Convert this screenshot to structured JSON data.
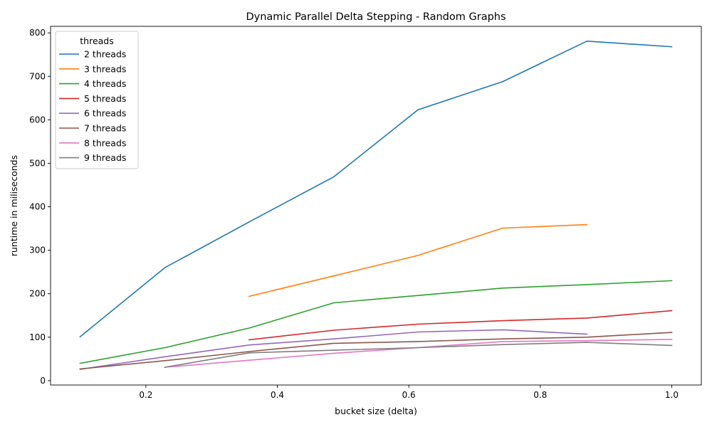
{
  "chart_data": {
    "type": "line",
    "title": "Dynamic Parallel Delta Stepping - Random Graphs",
    "xlabel": "bucket size (delta)",
    "ylabel": "runtime in miliseconds",
    "xlim": [
      0.055,
      1.045
    ],
    "ylim": [
      -10,
      815
    ],
    "xticks": [
      0.2,
      0.4,
      0.6,
      0.8,
      1.0
    ],
    "xtick_labels": [
      "0.2",
      "0.4",
      "0.6",
      "0.8",
      "1.0"
    ],
    "yticks": [
      0,
      100,
      200,
      300,
      400,
      500,
      600,
      700,
      800
    ],
    "ytick_labels": [
      "0",
      "100",
      "200",
      "300",
      "400",
      "500",
      "600",
      "700",
      "800"
    ],
    "grid": false,
    "legend": {
      "title": "threads",
      "placement": "top-left"
    },
    "series": [
      {
        "name": "2 threads",
        "color": "#1f77b4",
        "x": [
          0.1,
          0.229,
          0.357,
          0.486,
          0.614,
          0.743,
          0.871,
          1.0
        ],
        "y": [
          101,
          260,
          365,
          469,
          623,
          688,
          781,
          768
        ]
      },
      {
        "name": "3 threads",
        "color": "#ff7f0e",
        "x": [
          0.357,
          0.486,
          0.614,
          0.743,
          0.871
        ],
        "y": [
          194,
          241,
          288,
          351,
          359
        ]
      },
      {
        "name": "4 threads",
        "color": "#2ca02c",
        "x": [
          0.1,
          0.229,
          0.357,
          0.486,
          0.614,
          0.743,
          0.871,
          1.0
        ],
        "y": [
          40,
          76,
          121,
          179,
          196,
          213,
          221,
          230
        ]
      },
      {
        "name": "5 threads",
        "color": "#d62728",
        "x": [
          0.357,
          0.486,
          0.614,
          0.743,
          0.871,
          1.0
        ],
        "y": [
          94,
          116,
          130,
          138,
          144,
          161
        ]
      },
      {
        "name": "6 threads",
        "color": "#9467bd",
        "x": [
          0.1,
          0.229,
          0.357,
          0.486,
          0.614,
          0.743,
          0.871
        ],
        "y": [
          26,
          55,
          82,
          96,
          112,
          117,
          107
        ]
      },
      {
        "name": "7 threads",
        "color": "#8c564b",
        "x": [
          0.1,
          0.229,
          0.357,
          0.486,
          0.614,
          0.743,
          0.871,
          1.0
        ],
        "y": [
          27,
          46,
          67,
          86,
          90,
          96,
          100,
          111
        ]
      },
      {
        "name": "8 threads",
        "color": "#e377c2",
        "x": [
          0.229,
          0.357,
          0.486,
          0.614,
          0.743,
          0.871,
          1.0
        ],
        "y": [
          31,
          47,
          63,
          76,
          90,
          92,
          95
        ]
      },
      {
        "name": "9 threads",
        "color": "#7f7f7f",
        "x": [
          0.229,
          0.357,
          0.486,
          0.614,
          0.743,
          0.871,
          1.0
        ],
        "y": [
          31,
          64,
          70,
          76,
          83,
          88,
          81
        ]
      }
    ]
  }
}
